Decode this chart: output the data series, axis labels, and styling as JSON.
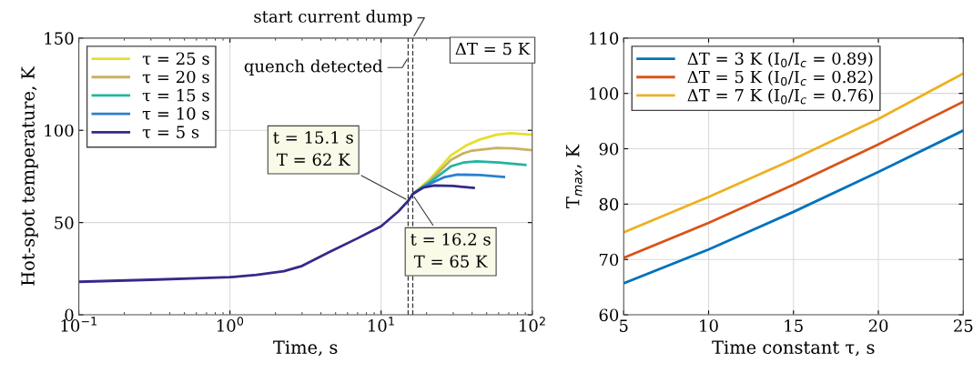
{
  "chart_data": [
    {
      "type": "line",
      "xlabel": "Time, s",
      "ylabel": "Hot-spot temperature, K",
      "log": "x",
      "xlim": [
        0.1,
        100
      ],
      "xticks": [
        {
          "value": 0.1,
          "label": "10$^{−1}$"
        },
        {
          "value": 1,
          "label": "10$^{0}$"
        },
        {
          "value": 10,
          "label": "10$^{1}$"
        },
        {
          "value": 100,
          "label": "10$^{2}$"
        }
      ],
      "ylim": [
        0,
        150
      ],
      "yticks": [
        0,
        50,
        100,
        150
      ],
      "grid": true,
      "legend": "top left",
      "series": [
        {
          "name": "τ = 25 s",
          "color": "#e5e028",
          "x": [
            16.5,
            21,
            29,
            37,
            45,
            58,
            72,
            100
          ],
          "values": [
            66,
            73.4,
            86.5,
            92,
            95,
            97.6,
            98.4,
            97.6
          ]
        },
        {
          "name": "τ = 20 s",
          "color": "#c9b160",
          "x": [
            16.5,
            21,
            29,
            35,
            40,
            58,
            75,
            100
          ],
          "values": [
            66,
            72.6,
            84,
            87.5,
            89,
            90.4,
            90.2,
            89.2
          ]
        },
        {
          "name": "τ = 15 s",
          "color": "#22b5a0",
          "x": [
            16.5,
            21,
            29,
            35,
            43,
            60,
            90
          ],
          "values": [
            66,
            71.8,
            80.5,
            82.5,
            83.2,
            82.6,
            81.2
          ]
        },
        {
          "name": "τ = 10 s",
          "color": "#2a80d2",
          "x": [
            16.5,
            21,
            26,
            32,
            45,
            65
          ],
          "values": [
            66,
            71,
            74.5,
            76,
            75.8,
            74.7
          ]
        },
        {
          "name": "τ = 5 s",
          "color": "#35298a",
          "x": [
            0.1,
            0.3,
            0.6,
            1,
            1.5,
            2.27,
            3,
            4.55,
            7,
            10,
            13,
            15.2,
            16.2,
            19,
            22.5,
            30,
            41
          ],
          "values": [
            17.9,
            19,
            19.8,
            20.4,
            21.6,
            23.6,
            26.5,
            34,
            41.5,
            48,
            56,
            62,
            65.5,
            69,
            70.1,
            69.8,
            68.8
          ]
        }
      ],
      "ref_lines": [
        {
          "axis": "x",
          "value": 15.1,
          "label": "quench detected",
          "line_style": "dashed",
          "color": "#333333"
        },
        {
          "axis": "x",
          "value": 16.2,
          "label": "start current dump",
          "line_style": "dashed",
          "color": "#333333"
        }
      ],
      "annotations": [
        {
          "text": "t = 15.1 s\nT = 62 K",
          "x": 15.1,
          "y": 62
        },
        {
          "text": "t = 16.2 s\nT = 65 K",
          "x": 16.2,
          "y": 65
        },
        "ΔT = 5 K"
      ]
    },
    {
      "type": "line",
      "xlabel": "Time constant τ, s",
      "ylabel": "T$_{max}$, K",
      "xlim": [
        5,
        25
      ],
      "xticks": [
        5,
        10,
        15,
        20,
        25
      ],
      "ylim": [
        60,
        110
      ],
      "yticks": [
        60,
        70,
        80,
        90,
        100,
        110
      ],
      "grid": true,
      "legend": "top left",
      "x": [
        5,
        10,
        15,
        20,
        25
      ],
      "series": [
        {
          "name": "ΔT = 3 K (I$_{0}$/I$_{c}$ = 0.89)",
          "color": "#0072bd",
          "values": [
            65.7,
            71.8,
            78.6,
            85.8,
            93.3
          ]
        },
        {
          "name": "ΔT = 5 K (I$_{0}$/I$_{c}$ = 0.82)",
          "color": "#d95319",
          "values": [
            70.3,
            76.6,
            83.5,
            90.8,
            98.5
          ]
        },
        {
          "name": "ΔT = 7 K (I$_{0}$/I$_{c}$ = 0.76)",
          "color": "#edb120",
          "values": [
            74.9,
            81.3,
            88.1,
            95.4,
            103.6
          ]
        }
      ]
    }
  ]
}
